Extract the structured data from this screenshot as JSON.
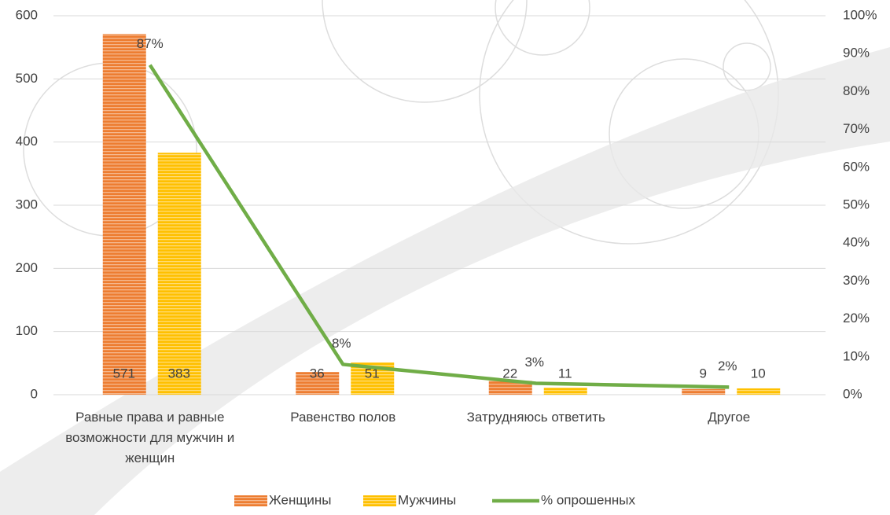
{
  "chart_data": {
    "type": "bar",
    "categories": [
      "Равные права и равные возможности для мужчин и женщин",
      "Равенство полов",
      "Затрудняюсь ответить",
      "Другое"
    ],
    "series": [
      {
        "name": "Женщины",
        "color": "#ed7d31",
        "values": [
          571,
          36,
          22,
          9
        ]
      },
      {
        "name": "Мужчины",
        "color": "#ffc000",
        "values": [
          383,
          51,
          11,
          10
        ]
      },
      {
        "name": "% опрошенных",
        "color": "#70ad47",
        "type": "line",
        "axis": "y2",
        "values": [
          87,
          8,
          3,
          2
        ],
        "value_labels": [
          "87%",
          "8%",
          "3%",
          "2%"
        ]
      }
    ],
    "ylim": [
      0,
      600
    ],
    "yticks": [
      0,
      100,
      200,
      300,
      400,
      500,
      600
    ],
    "y2lim": [
      0,
      100
    ],
    "y2ticks": [
      {
        "value": 0,
        "label": "0%"
      },
      {
        "value": 10,
        "label": "10%"
      },
      {
        "value": 20,
        "label": "20%"
      },
      {
        "value": 30,
        "label": "30%"
      },
      {
        "value": 40,
        "label": "40%"
      },
      {
        "value": 50,
        "label": "50%"
      },
      {
        "value": 60,
        "label": "60%"
      },
      {
        "value": 70,
        "label": "70%"
      },
      {
        "value": 80,
        "label": "80%"
      },
      {
        "value": 90,
        "label": "90%"
      },
      {
        "value": 100,
        "label": "100%"
      }
    ],
    "grid": true,
    "legend": "bottom"
  }
}
